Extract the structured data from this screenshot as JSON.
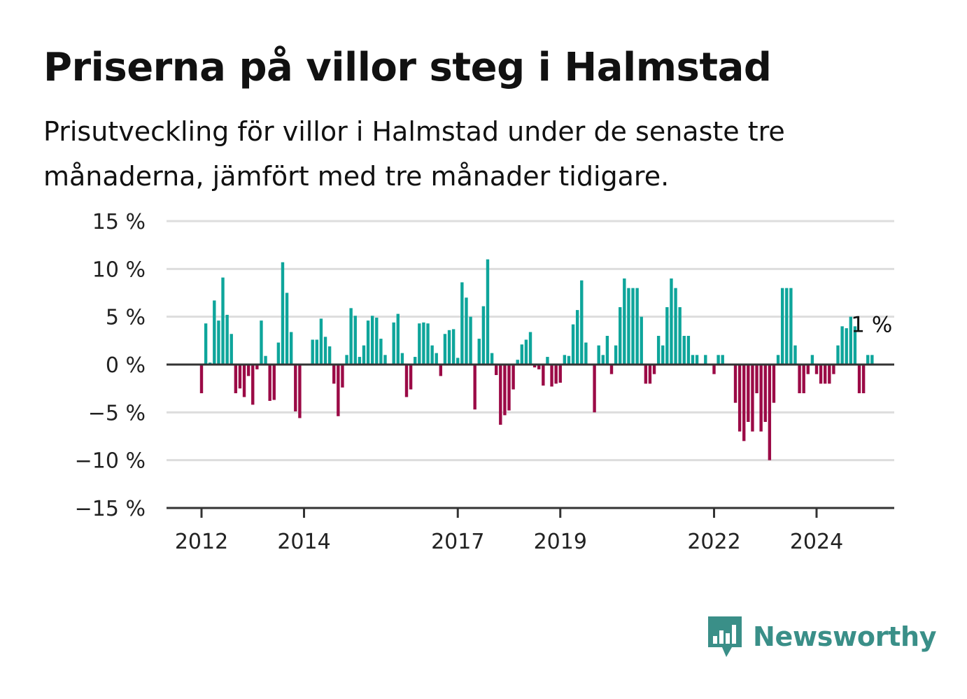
{
  "header": {
    "title": "Priserna på villor steg i Halmstad",
    "subtitle": "Prisutveckling för villor i Halmstad under de senaste tre månaderna, jämfört med tre månader tidigare."
  },
  "brand": {
    "name": "Newsworthy",
    "logo_icon": "bar-chart-speech-bubble-icon",
    "color": "#3a8f88"
  },
  "chart_data": {
    "type": "bar",
    "title": "Priserna på villor steg i Halmstad",
    "subtitle": "Prisutveckling för villor i Halmstad under de senaste tre månaderna, jämfört med tre månader tidigare.",
    "xlabel": "",
    "ylabel": "",
    "ylim": [
      -15,
      15
    ],
    "y_ticks": [
      15,
      10,
      5,
      0,
      -5,
      -10,
      -15
    ],
    "y_tick_labels": [
      "15 %",
      "10 %",
      "5 %",
      "0 %",
      "−5 %",
      "−10 %",
      "−15 %"
    ],
    "x_ticks": [
      2012,
      2014,
      2017,
      2019,
      2022,
      2024
    ],
    "x_tick_labels": [
      "2012",
      "2014",
      "2017",
      "2019",
      "2022",
      "2024"
    ],
    "grid": "horizontal",
    "colors": {
      "positive": "#0ea59b",
      "negative": "#9b0a46",
      "grid": "#dddddd",
      "axis": "#333333"
    },
    "annotation": {
      "label": "1 %",
      "x": "2025-01",
      "value": 1
    },
    "x_start": "2012-01",
    "values": [
      -3.0,
      4.3,
      0.2,
      6.7,
      4.6,
      9.1,
      5.2,
      3.2,
      -3.0,
      -2.5,
      -3.4,
      -1.2,
      -4.2,
      -0.5,
      4.6,
      0.9,
      -3.8,
      -3.7,
      2.3,
      10.7,
      7.5,
      3.4,
      -4.9,
      -5.6,
      0,
      0,
      2.6,
      2.6,
      4.8,
      2.9,
      1.9,
      -2.0,
      -5.4,
      -2.4,
      1.0,
      5.9,
      5.1,
      0.8,
      2.0,
      4.6,
      5.1,
      4.9,
      2.7,
      1.0,
      0,
      4.4,
      5.3,
      1.2,
      -3.4,
      -2.6,
      0.8,
      4.3,
      4.4,
      4.3,
      2.0,
      1.2,
      -1.2,
      3.2,
      3.6,
      3.7,
      0.7,
      8.6,
      7.0,
      5.0,
      -4.7,
      2.7,
      6.1,
      11.0,
      1.2,
      -1.1,
      -6.3,
      -5.3,
      -4.8,
      -2.6,
      0.5,
      2.1,
      2.6,
      3.4,
      -0.3,
      -0.5,
      -2.2,
      0.8,
      -2.3,
      -2.0,
      -1.9,
      1.0,
      0.9,
      4.2,
      5.7,
      8.8,
      2.3,
      0,
      -5.0,
      2.0,
      1.0,
      3.0,
      -1.0,
      2.0,
      6.0,
      9.0,
      8.0,
      8.0,
      8.0,
      5.0,
      -2.0,
      -2.0,
      -1.0,
      3.0,
      2.0,
      6.0,
      9.0,
      8.0,
      6.0,
      3.0,
      3.0,
      1.0,
      1.0,
      0,
      1.0,
      0,
      -1.0,
      1.0,
      1.0,
      0,
      0,
      -4.0,
      -7.0,
      -8.0,
      -6.0,
      -7.0,
      -3.0,
      -7.0,
      -6.0,
      -10.0,
      -4.0,
      1.0,
      8.0,
      8.0,
      8.0,
      2.0,
      -3.0,
      -3.0,
      -1.0,
      1.0,
      -1.0,
      -2.0,
      -2.0,
      -2.0,
      -1.0,
      2.0,
      4.0,
      3.8,
      5.0,
      4.0,
      -3.0,
      -3.0,
      1.0,
      1.0
    ]
  }
}
